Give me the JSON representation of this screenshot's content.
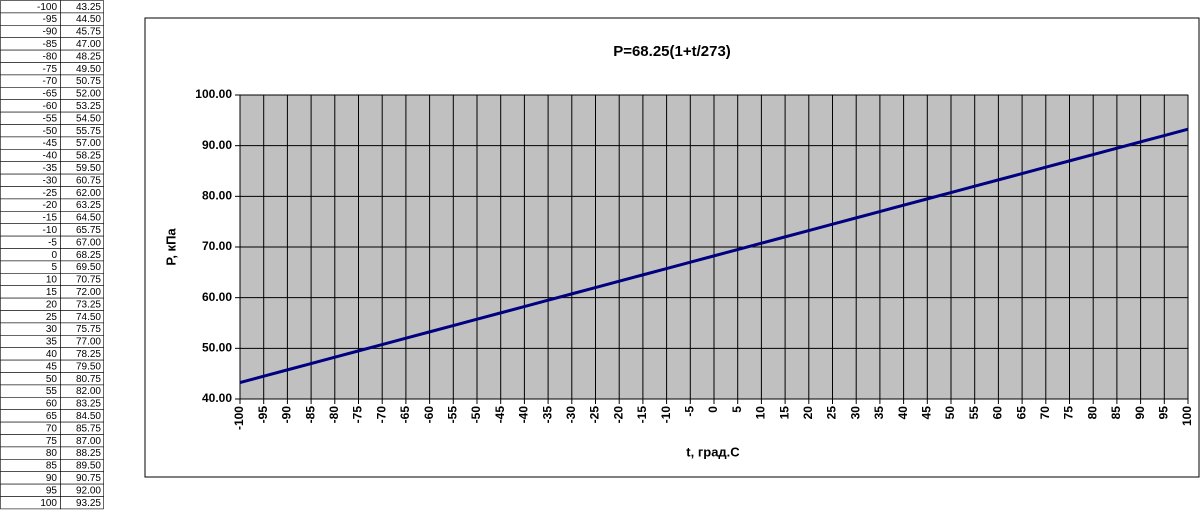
{
  "chart_data": {
    "type": "line",
    "title": "P=68.25(1+t/273)",
    "x_label": "t, град.С",
    "y_label": "P, кПа",
    "x": [
      -100,
      -95,
      -90,
      -85,
      -80,
      -75,
      -70,
      -65,
      -60,
      -55,
      -50,
      -45,
      -40,
      -35,
      -30,
      -25,
      -20,
      -15,
      -10,
      -5,
      0,
      5,
      10,
      15,
      20,
      25,
      30,
      35,
      40,
      45,
      50,
      55,
      60,
      65,
      70,
      75,
      80,
      85,
      90,
      95,
      100
    ],
    "values": [
      43.25,
      44.5,
      45.75,
      47,
      48.25,
      49.5,
      50.75,
      52,
      53.25,
      54.5,
      55.75,
      57,
      58.25,
      59.5,
      60.75,
      62,
      63.25,
      64.5,
      65.75,
      67,
      68.25,
      69.5,
      70.75,
      72,
      73.25,
      74.5,
      75.75,
      77,
      78.25,
      79.5,
      80.75,
      82,
      83.25,
      84.5,
      85.75,
      87,
      88.25,
      89.5,
      90.75,
      92,
      93.25
    ],
    "value_labels": [
      "43.25",
      "44.50",
      "45.75",
      "47.00",
      "48.25",
      "49.50",
      "50.75",
      "52.00",
      "53.25",
      "54.50",
      "55.75",
      "57.00",
      "58.25",
      "59.50",
      "60.75",
      "62.00",
      "63.25",
      "64.50",
      "65.75",
      "67.00",
      "68.25",
      "69.50",
      "70.75",
      "72.00",
      "73.25",
      "74.50",
      "75.75",
      "77.00",
      "78.25",
      "79.50",
      "80.75",
      "82.00",
      "83.25",
      "84.50",
      "85.75",
      "87.00",
      "88.25",
      "89.50",
      "90.75",
      "92.00",
      "93.25"
    ],
    "color": "#000080",
    "plot_color": "#c0c0c0",
    "xlim": [
      -100,
      100
    ],
    "xticks": [
      -100,
      -95,
      -90,
      -85,
      -80,
      -75,
      -70,
      -65,
      -60,
      -55,
      -50,
      -45,
      -40,
      -35,
      -30,
      -25,
      -20,
      -15,
      -10,
      -5,
      0,
      5,
      10,
      15,
      20,
      25,
      30,
      35,
      40,
      45,
      50,
      55,
      60,
      65,
      70,
      75,
      80,
      85,
      90,
      95,
      100
    ],
    "ylim": [
      40,
      100
    ],
    "yticks": [
      {
        "value": 40,
        "label": "40.00"
      },
      {
        "value": 50,
        "label": "50.00"
      },
      {
        "value": 60,
        "label": "60.00"
      },
      {
        "value": 70,
        "label": "70.00"
      },
      {
        "value": 80,
        "label": "80.00"
      },
      {
        "value": 90,
        "label": "90.00"
      },
      {
        "value": 100,
        "label": "100.00"
      }
    ],
    "grid": true
  }
}
